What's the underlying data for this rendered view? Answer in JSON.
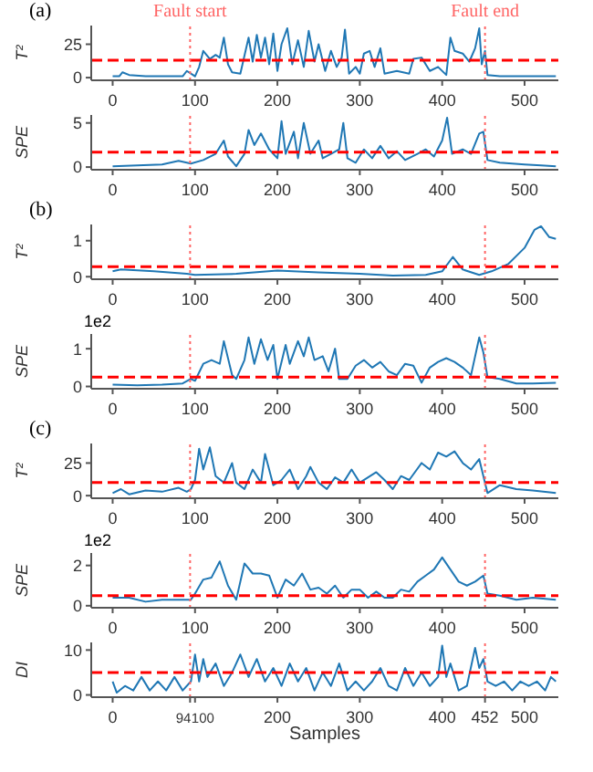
{
  "chart_data": [
    {
      "type": "line",
      "title": "(a)",
      "ylabel": "T²",
      "xlim": [
        -26,
        541
      ],
      "xticks": [
        0,
        100,
        200,
        300,
        400,
        500
      ],
      "ylim": [
        -2,
        39
      ],
      "yticks": [
        0,
        25
      ],
      "line_style": "solid",
      "marker": "none",
      "series": [
        {
          "color": "#1f77b4",
          "x": [
            0,
            8,
            12,
            20,
            40,
            60,
            85,
            90,
            95,
            100,
            105,
            110,
            118,
            125,
            130,
            135,
            140,
            145,
            155,
            165,
            170,
            175,
            180,
            185,
            190,
            195,
            200,
            205,
            212,
            218,
            225,
            232,
            238,
            245,
            250,
            258,
            265,
            272,
            278,
            282,
            287,
            295,
            300,
            305,
            312,
            318,
            325,
            330,
            345,
            360,
            365,
            375,
            385,
            395,
            405,
            410,
            415,
            425,
            433,
            440,
            445,
            448,
            452,
            455,
            470,
            490,
            538
          ],
          "values": [
            1,
            1,
            4,
            2,
            1,
            1,
            1,
            5,
            3,
            1,
            8,
            20,
            14,
            17,
            15,
            30,
            10,
            4,
            3,
            30,
            12,
            32,
            15,
            30,
            10,
            33,
            5,
            25,
            37,
            10,
            28,
            8,
            35,
            12,
            25,
            5,
            20,
            8,
            15,
            36,
            3,
            8,
            3,
            18,
            20,
            8,
            22,
            3,
            5,
            3,
            14,
            15,
            5,
            8,
            2,
            30,
            20,
            18,
            12,
            22,
            37,
            10,
            20,
            2,
            1,
            1,
            1
          ]
        }
      ],
      "ref_lines": [
        {
          "axis": "y",
          "value": 13,
          "color": "#ff0000",
          "line_style": "dashed"
        },
        {
          "axis": "x",
          "value": 94,
          "label": "Fault start",
          "color": "#ff6666",
          "line_style": "dotted"
        },
        {
          "axis": "x",
          "value": 452,
          "label": "Fault end",
          "color": "#ff6666",
          "line_style": "dotted"
        }
      ]
    },
    {
      "type": "line",
      "ylabel": "SPE",
      "xlim": [
        -26,
        541
      ],
      "xticks": [
        0,
        100,
        200,
        300,
        400,
        500
      ],
      "ylim": [
        -0.3,
        5.9
      ],
      "yticks": [
        0,
        5
      ],
      "line_style": "solid",
      "marker": "none",
      "series": [
        {
          "color": "#1f77b4",
          "x": [
            0,
            30,
            60,
            80,
            95,
            110,
            125,
            135,
            140,
            150,
            160,
            165,
            172,
            180,
            190,
            200,
            205,
            210,
            220,
            225,
            232,
            240,
            250,
            255,
            265,
            275,
            280,
            285,
            295,
            305,
            315,
            325,
            335,
            345,
            355,
            370,
            380,
            390,
            400,
            406,
            412,
            425,
            435,
            445,
            450,
            455,
            470,
            500,
            520,
            538
          ],
          "values": [
            0.1,
            0.2,
            0.3,
            0.7,
            0.4,
            0.8,
            1.5,
            3,
            1.2,
            0.1,
            1.5,
            4.2,
            2.5,
            3.8,
            2,
            1,
            5.2,
            1.5,
            4,
            1,
            5,
            1.5,
            3,
            1,
            1.5,
            2,
            5,
            1,
            0.5,
            2,
            1,
            2.4,
            1,
            1.8,
            0.8,
            1.5,
            2,
            1.2,
            3,
            5.6,
            1.5,
            2,
            1.5,
            3.8,
            4,
            0.8,
            0.5,
            0.3,
            0.2,
            0.1
          ]
        }
      ],
      "ref_lines": [
        {
          "axis": "y",
          "value": 1.7,
          "color": "#ff0000",
          "line_style": "dashed"
        },
        {
          "axis": "x",
          "value": 94,
          "color": "#ff6666",
          "line_style": "dotted"
        },
        {
          "axis": "x",
          "value": 452,
          "color": "#ff6666",
          "line_style": "dotted"
        }
      ]
    },
    {
      "type": "line",
      "title": "(b)",
      "ylabel": "T²",
      "xlim": [
        -26,
        541
      ],
      "xticks": [
        0,
        100,
        200,
        300,
        400,
        500
      ],
      "ylim": [
        -0.07,
        1.45
      ],
      "yticks": [
        0,
        1
      ],
      "line_style": "solid",
      "marker": "none",
      "series": [
        {
          "color": "#1f77b4",
          "x": [
            0,
            10,
            50,
            90,
            100,
            150,
            200,
            250,
            300,
            340,
            380,
            400,
            413,
            425,
            445,
            460,
            480,
            500,
            512,
            520,
            530,
            538
          ],
          "values": [
            0.15,
            0.2,
            0.15,
            0.08,
            0.05,
            0.08,
            0.17,
            0.12,
            0.08,
            0.03,
            0.05,
            0.15,
            0.55,
            0.2,
            0.05,
            0.15,
            0.35,
            0.8,
            1.3,
            1.4,
            1.1,
            1.05
          ]
        }
      ],
      "ref_lines": [
        {
          "axis": "y",
          "value": 0.28,
          "color": "#ff0000",
          "line_style": "dashed"
        },
        {
          "axis": "x",
          "value": 94,
          "color": "#ff6666",
          "line_style": "dotted"
        },
        {
          "axis": "x",
          "value": 452,
          "color": "#ff6666",
          "line_style": "dotted"
        }
      ]
    },
    {
      "type": "line",
      "ylabel": "SPE",
      "annotations": [
        "1e2"
      ],
      "xlim": [
        -26,
        541
      ],
      "xticks": [
        0,
        100,
        200,
        300,
        400,
        500
      ],
      "ylim": [
        -0.06,
        1.39
      ],
      "yticks": [
        0,
        1
      ],
      "line_style": "solid",
      "marker": "none",
      "series": [
        {
          "color": "#1f77b4",
          "x": [
            0,
            30,
            60,
            85,
            95,
            100,
            110,
            120,
            130,
            135,
            145,
            150,
            160,
            165,
            172,
            180,
            188,
            195,
            200,
            210,
            215,
            225,
            232,
            238,
            245,
            255,
            262,
            270,
            275,
            285,
            295,
            305,
            315,
            325,
            335,
            345,
            355,
            365,
            375,
            385,
            395,
            405,
            415,
            425,
            435,
            445,
            450,
            455,
            470,
            490,
            510,
            538
          ],
          "values": [
            0.05,
            0.03,
            0.05,
            0.08,
            0.2,
            0.15,
            0.6,
            0.7,
            0.6,
            1.2,
            0.3,
            0.2,
            0.7,
            1.3,
            0.6,
            1.25,
            0.7,
            1.1,
            0.2,
            1.1,
            0.6,
            1.2,
            0.8,
            1.3,
            0.7,
            0.8,
            0.4,
            1.0,
            0.2,
            0.2,
            0.55,
            0.7,
            0.5,
            0.65,
            0.4,
            0.3,
            0.6,
            0.55,
            0.1,
            0.5,
            0.65,
            0.75,
            0.65,
            0.5,
            0.3,
            1.3,
            0.9,
            0.25,
            0.2,
            0.08,
            0.08,
            0.1
          ]
        }
      ],
      "ref_lines": [
        {
          "axis": "y",
          "value": 0.25,
          "color": "#ff0000",
          "line_style": "dashed"
        },
        {
          "axis": "x",
          "value": 94,
          "color": "#ff6666",
          "line_style": "dotted"
        },
        {
          "axis": "x",
          "value": 452,
          "color": "#ff6666",
          "line_style": "dotted"
        }
      ]
    },
    {
      "type": "line",
      "title": "(c)",
      "ylabel": "T²",
      "xlim": [
        -26,
        541
      ],
      "xticks": [
        0,
        100,
        200,
        300,
        400,
        500
      ],
      "ylim": [
        -2,
        40
      ],
      "yticks": [
        0,
        25
      ],
      "line_style": "solid",
      "marker": "none",
      "series": [
        {
          "color": "#1f77b4",
          "x": [
            0,
            10,
            20,
            40,
            60,
            80,
            90,
            95,
            100,
            105,
            110,
            118,
            125,
            135,
            145,
            150,
            160,
            170,
            180,
            185,
            195,
            205,
            215,
            225,
            235,
            240,
            250,
            260,
            270,
            280,
            290,
            300,
            310,
            320,
            330,
            340,
            350,
            360,
            375,
            385,
            395,
            405,
            415,
            425,
            435,
            445,
            450,
            455,
            470,
            490,
            510,
            538
          ],
          "values": [
            2,
            5,
            1,
            4,
            3,
            6,
            3,
            5,
            12,
            36,
            20,
            37,
            15,
            10,
            25,
            10,
            5,
            20,
            10,
            32,
            8,
            12,
            20,
            5,
            15,
            22,
            10,
            5,
            14,
            10,
            20,
            10,
            14,
            18,
            12,
            5,
            15,
            12,
            25,
            20,
            33,
            30,
            34,
            25,
            20,
            28,
            15,
            2,
            8,
            5,
            4,
            2
          ]
        }
      ],
      "ref_lines": [
        {
          "axis": "y",
          "value": 10,
          "color": "#ff0000",
          "line_style": "dashed"
        },
        {
          "axis": "x",
          "value": 94,
          "color": "#ff6666",
          "line_style": "dotted"
        },
        {
          "axis": "x",
          "value": 452,
          "color": "#ff6666",
          "line_style": "dotted"
        }
      ]
    },
    {
      "type": "line",
      "ylabel": "SPE",
      "annotations": [
        "1e2"
      ],
      "xlim": [
        -26,
        541
      ],
      "xticks": [
        0,
        100,
        200,
        300,
        400,
        500
      ],
      "ylim": [
        -0.1,
        2.62
      ],
      "yticks": [
        0,
        2
      ],
      "line_style": "solid",
      "marker": "none",
      "series": [
        {
          "color": "#1f77b4",
          "x": [
            0,
            20,
            40,
            60,
            80,
            95,
            100,
            110,
            120,
            130,
            140,
            150,
            160,
            170,
            180,
            190,
            200,
            210,
            220,
            230,
            240,
            250,
            260,
            270,
            280,
            290,
            300,
            310,
            320,
            330,
            340,
            350,
            360,
            370,
            380,
            390,
            400,
            410,
            420,
            430,
            440,
            450,
            455,
            470,
            490,
            510,
            538
          ],
          "values": [
            0.4,
            0.4,
            0.2,
            0.3,
            0.3,
            0.3,
            0.6,
            1.3,
            1.4,
            2.2,
            1.0,
            0.3,
            2.1,
            1.6,
            1.6,
            1.5,
            0.4,
            1.3,
            1.0,
            1.6,
            0.8,
            0.9,
            0.6,
            1.0,
            0.4,
            0.8,
            0.8,
            0.4,
            0.7,
            0.4,
            0.4,
            0.8,
            0.7,
            1.2,
            1.5,
            1.8,
            2.4,
            1.8,
            1.2,
            1.0,
            1.2,
            1.5,
            0.6,
            0.5,
            0.3,
            0.4,
            0.3
          ]
        }
      ],
      "ref_lines": [
        {
          "axis": "y",
          "value": 0.5,
          "color": "#ff0000",
          "line_style": "dashed"
        },
        {
          "axis": "x",
          "value": 94,
          "color": "#ff6666",
          "line_style": "dotted"
        },
        {
          "axis": "x",
          "value": 452,
          "color": "#ff6666",
          "line_style": "dotted"
        }
      ]
    },
    {
      "type": "line",
      "ylabel": "DI",
      "xlabel": "Samples",
      "xlim": [
        -26,
        541
      ],
      "xticks": [
        0,
        94,
        100,
        200,
        300,
        400,
        452,
        500
      ],
      "ylim": [
        -0.5,
        11.7
      ],
      "yticks": [
        0,
        10
      ],
      "line_style": "solid",
      "marker": "none",
      "series": [
        {
          "color": "#1f77b4",
          "x": [
            0,
            5,
            15,
            25,
            35,
            45,
            55,
            65,
            75,
            85,
            95,
            100,
            105,
            110,
            115,
            125,
            135,
            145,
            155,
            165,
            175,
            185,
            195,
            205,
            215,
            225,
            235,
            245,
            255,
            265,
            275,
            285,
            295,
            305,
            315,
            325,
            335,
            345,
            355,
            365,
            375,
            385,
            395,
            400,
            405,
            410,
            420,
            430,
            440,
            445,
            450,
            455,
            465,
            475,
            485,
            495,
            505,
            515,
            525,
            532,
            538
          ],
          "values": [
            3,
            0.5,
            2,
            1,
            4,
            1,
            3,
            1,
            4,
            1,
            3,
            9,
            3,
            8,
            4,
            7,
            2,
            5,
            9,
            4,
            8,
            3,
            6,
            2,
            7,
            3,
            6,
            1,
            5,
            2,
            7,
            1,
            3,
            1,
            3,
            6,
            2,
            1,
            6,
            2,
            5,
            2,
            4,
            11,
            4,
            7,
            1,
            2,
            10.5,
            6,
            8,
            3,
            2,
            3,
            1,
            3,
            2,
            3,
            1,
            4,
            3
          ]
        }
      ],
      "ref_lines": [
        {
          "axis": "y",
          "value": 5,
          "color": "#ff0000",
          "line_style": "dashed"
        },
        {
          "axis": "x",
          "value": 94,
          "color": "#ff6666",
          "line_style": "dotted"
        },
        {
          "axis": "x",
          "value": 452,
          "color": "#ff6666",
          "line_style": "dotted"
        }
      ]
    }
  ]
}
